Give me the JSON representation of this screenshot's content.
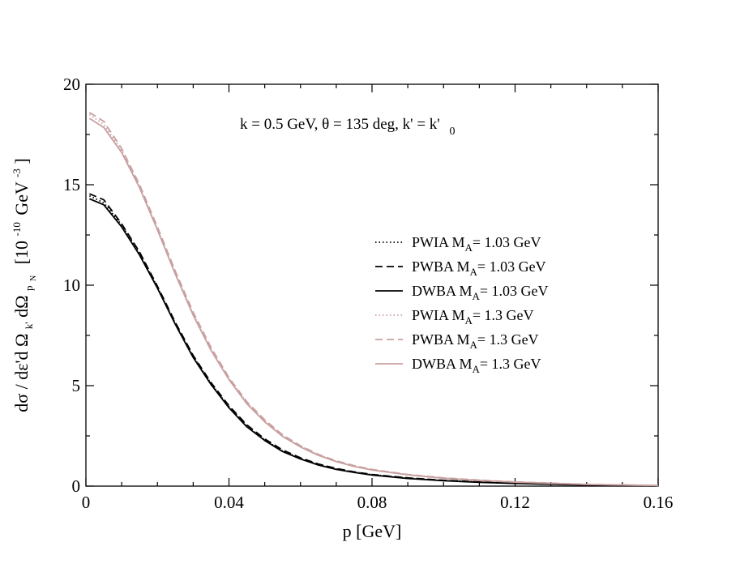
{
  "chart_data": {
    "type": "line",
    "title": "",
    "annotation": {
      "main": "k = 0.5 GeV, θ = 135 deg, k' = k'",
      "sub": "0"
    },
    "xlabel": "p [GeV]",
    "ylabel": {
      "main": "dσ / dε'd Ω",
      "k_sub": "k'",
      "mid": "dΩ",
      "p_sub": "p",
      "n_sub": "N",
      "unit_open": "[10",
      "exp1": "-10",
      "gev": "GeV",
      "exp2": "-3",
      "unit_close": "]"
    },
    "xlim": [
      0,
      0.16
    ],
    "ylim": [
      0,
      20
    ],
    "x_ticks": [
      "0",
      "0.04",
      "0.08",
      "0.12",
      "0.16"
    ],
    "y_ticks": [
      "0",
      "5",
      "10",
      "15",
      "20"
    ],
    "x_tick_values": [
      0,
      0.04,
      0.08,
      0.12,
      0.16
    ],
    "y_tick_values": [
      0,
      5,
      10,
      15,
      20
    ],
    "x": [
      0.001,
      0.005,
      0.01,
      0.015,
      0.02,
      0.025,
      0.03,
      0.035,
      0.04,
      0.045,
      0.05,
      0.055,
      0.06,
      0.065,
      0.07,
      0.075,
      0.08,
      0.09,
      0.1,
      0.11,
      0.12,
      0.14,
      0.16
    ],
    "series": [
      {
        "name": "PWIA",
        "ma": "A",
        "label_tail": "= 1.03 GeV",
        "color": "#000000",
        "dash": "1.5,3",
        "width": 1.8,
        "values": [
          14.45,
          14.1,
          13.0,
          11.6,
          9.9,
          8.1,
          6.45,
          5.1,
          3.95,
          3.0,
          2.3,
          1.75,
          1.38,
          1.08,
          0.86,
          0.7,
          0.57,
          0.4,
          0.28,
          0.2,
          0.14,
          0.06,
          0.02
        ]
      },
      {
        "name": "PWBA",
        "ma": "A",
        "label_tail": "= 1.03 GeV",
        "color": "#000000",
        "dash": "9,5",
        "width": 1.8,
        "values": [
          14.55,
          14.25,
          13.05,
          11.65,
          9.95,
          8.15,
          6.5,
          5.15,
          4.0,
          3.05,
          2.35,
          1.8,
          1.41,
          1.1,
          0.88,
          0.71,
          0.58,
          0.41,
          0.29,
          0.21,
          0.15,
          0.06,
          0.02
        ]
      },
      {
        "name": "DWBA",
        "ma": "A",
        "label_tail": "= 1.03 GeV",
        "color": "#000000",
        "dash": "",
        "width": 1.8,
        "values": [
          14.3,
          14.0,
          12.9,
          11.5,
          9.85,
          8.05,
          6.4,
          5.05,
          3.9,
          2.95,
          2.27,
          1.72,
          1.35,
          1.05,
          0.83,
          0.68,
          0.55,
          0.38,
          0.27,
          0.19,
          0.13,
          0.05,
          0.02
        ]
      },
      {
        "name": "PWIA",
        "ma": "A",
        "label_tail": "= 1.3 GeV",
        "color": "#c9a0a0",
        "dash": "1.5,3",
        "width": 1.8,
        "values": [
          18.5,
          18.0,
          16.7,
          14.9,
          12.8,
          10.6,
          8.55,
          6.8,
          5.35,
          4.15,
          3.25,
          2.5,
          1.98,
          1.56,
          1.24,
          1.0,
          0.82,
          0.57,
          0.4,
          0.29,
          0.2,
          0.09,
          0.03
        ]
      },
      {
        "name": "PWBA",
        "ma": "A",
        "label_tail": "= 1.3 GeV",
        "color": "#c9a0a0",
        "dash": "9,5",
        "width": 1.8,
        "values": [
          18.6,
          18.15,
          16.8,
          15.0,
          12.9,
          10.7,
          8.65,
          6.9,
          5.4,
          4.2,
          3.3,
          2.55,
          2.01,
          1.58,
          1.26,
          1.02,
          0.83,
          0.58,
          0.41,
          0.3,
          0.21,
          0.09,
          0.03
        ]
      },
      {
        "name": "DWBA",
        "ma": "A",
        "label_tail": "= 1.3 GeV",
        "color": "#c9a0a0",
        "dash": "",
        "width": 1.8,
        "values": [
          18.3,
          17.85,
          16.6,
          14.85,
          12.75,
          10.55,
          8.5,
          6.75,
          5.3,
          4.1,
          3.2,
          2.47,
          1.95,
          1.53,
          1.22,
          0.98,
          0.8,
          0.56,
          0.39,
          0.28,
          0.2,
          0.08,
          0.03
        ]
      }
    ],
    "legend_position": "middle-right",
    "grid": false
  }
}
